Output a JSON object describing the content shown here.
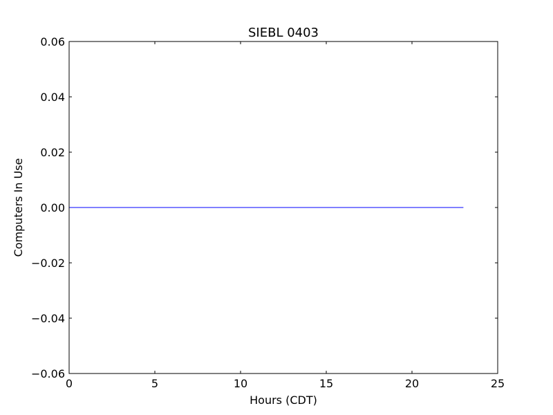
{
  "chart_data": {
    "type": "line",
    "title": "SIEBL 0403",
    "xlabel": "Hours (CDT)",
    "ylabel": "Computers In Use",
    "xlim": [
      0,
      25
    ],
    "ylim": [
      -0.06,
      0.06
    ],
    "x_ticks": [
      0,
      5,
      10,
      15,
      20,
      25
    ],
    "x_tick_labels": [
      "0",
      "5",
      "10",
      "15",
      "20",
      "25"
    ],
    "y_ticks": [
      0.06,
      0.04,
      0.02,
      0.0,
      -0.02,
      -0.04,
      -0.06
    ],
    "y_tick_labels": [
      "0.06",
      "0.04",
      "0.02",
      "0.00",
      "−0.02",
      "−0.04",
      "−0.06"
    ],
    "grid": false,
    "series": [
      {
        "color": "#0000ff",
        "x": [
          0,
          1,
          2,
          3,
          4,
          5,
          6,
          7,
          8,
          9,
          10,
          11,
          12,
          13,
          14,
          15,
          16,
          17,
          18,
          19,
          20,
          21,
          22,
          23
        ],
        "y": [
          0,
          0,
          0,
          0,
          0,
          0,
          0,
          0,
          0,
          0,
          0,
          0,
          0,
          0,
          0,
          0,
          0,
          0,
          0,
          0,
          0,
          0,
          0,
          0
        ]
      }
    ]
  }
}
